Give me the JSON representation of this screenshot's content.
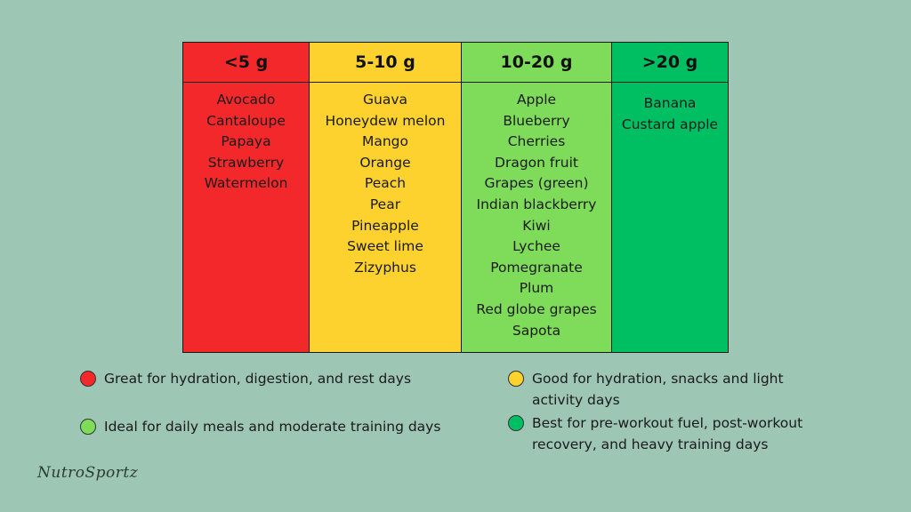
{
  "chart_data": {
    "type": "table",
    "title": "",
    "columns": [
      {
        "header": "<5 g",
        "color": "#f2282b",
        "items": [
          "Avocado",
          "Cantaloupe",
          "Papaya",
          "Strawberry",
          "Watermelon"
        ]
      },
      {
        "header": "5-10 g",
        "color": "#fdd22e",
        "items": [
          "Guava",
          "Honeydew melon",
          "Mango",
          "Orange",
          "Peach",
          "Pear",
          "Pineapple",
          "Sweet lime",
          "Zizyphus"
        ]
      },
      {
        "header": "10-20 g",
        "color": "#7fdc5a",
        "items": [
          "Apple",
          "Blueberry",
          "Cherries",
          "Dragon fruit",
          "Grapes (green)",
          "Indian blackberry",
          "Kiwi",
          "Lychee",
          "Pomegranate",
          "Plum",
          "Red globe grapes",
          "Sapota"
        ]
      },
      {
        "header": ">20 g",
        "color": "#00bf63",
        "items": [
          "Banana",
          "Custard apple"
        ]
      }
    ],
    "legend": [
      {
        "color": "#f2282b",
        "text": "Great for hydration, digestion, and rest days"
      },
      {
        "color": "#fdd22e",
        "text": "Good for hydration, snacks and light activity days"
      },
      {
        "color": "#7fdc5a",
        "text": "Ideal for daily meals and moderate training days"
      },
      {
        "color": "#00bf63",
        "text": "Best for pre-workout fuel, post-workout recovery, and heavy training days"
      }
    ]
  },
  "brand": "NutroSportz"
}
